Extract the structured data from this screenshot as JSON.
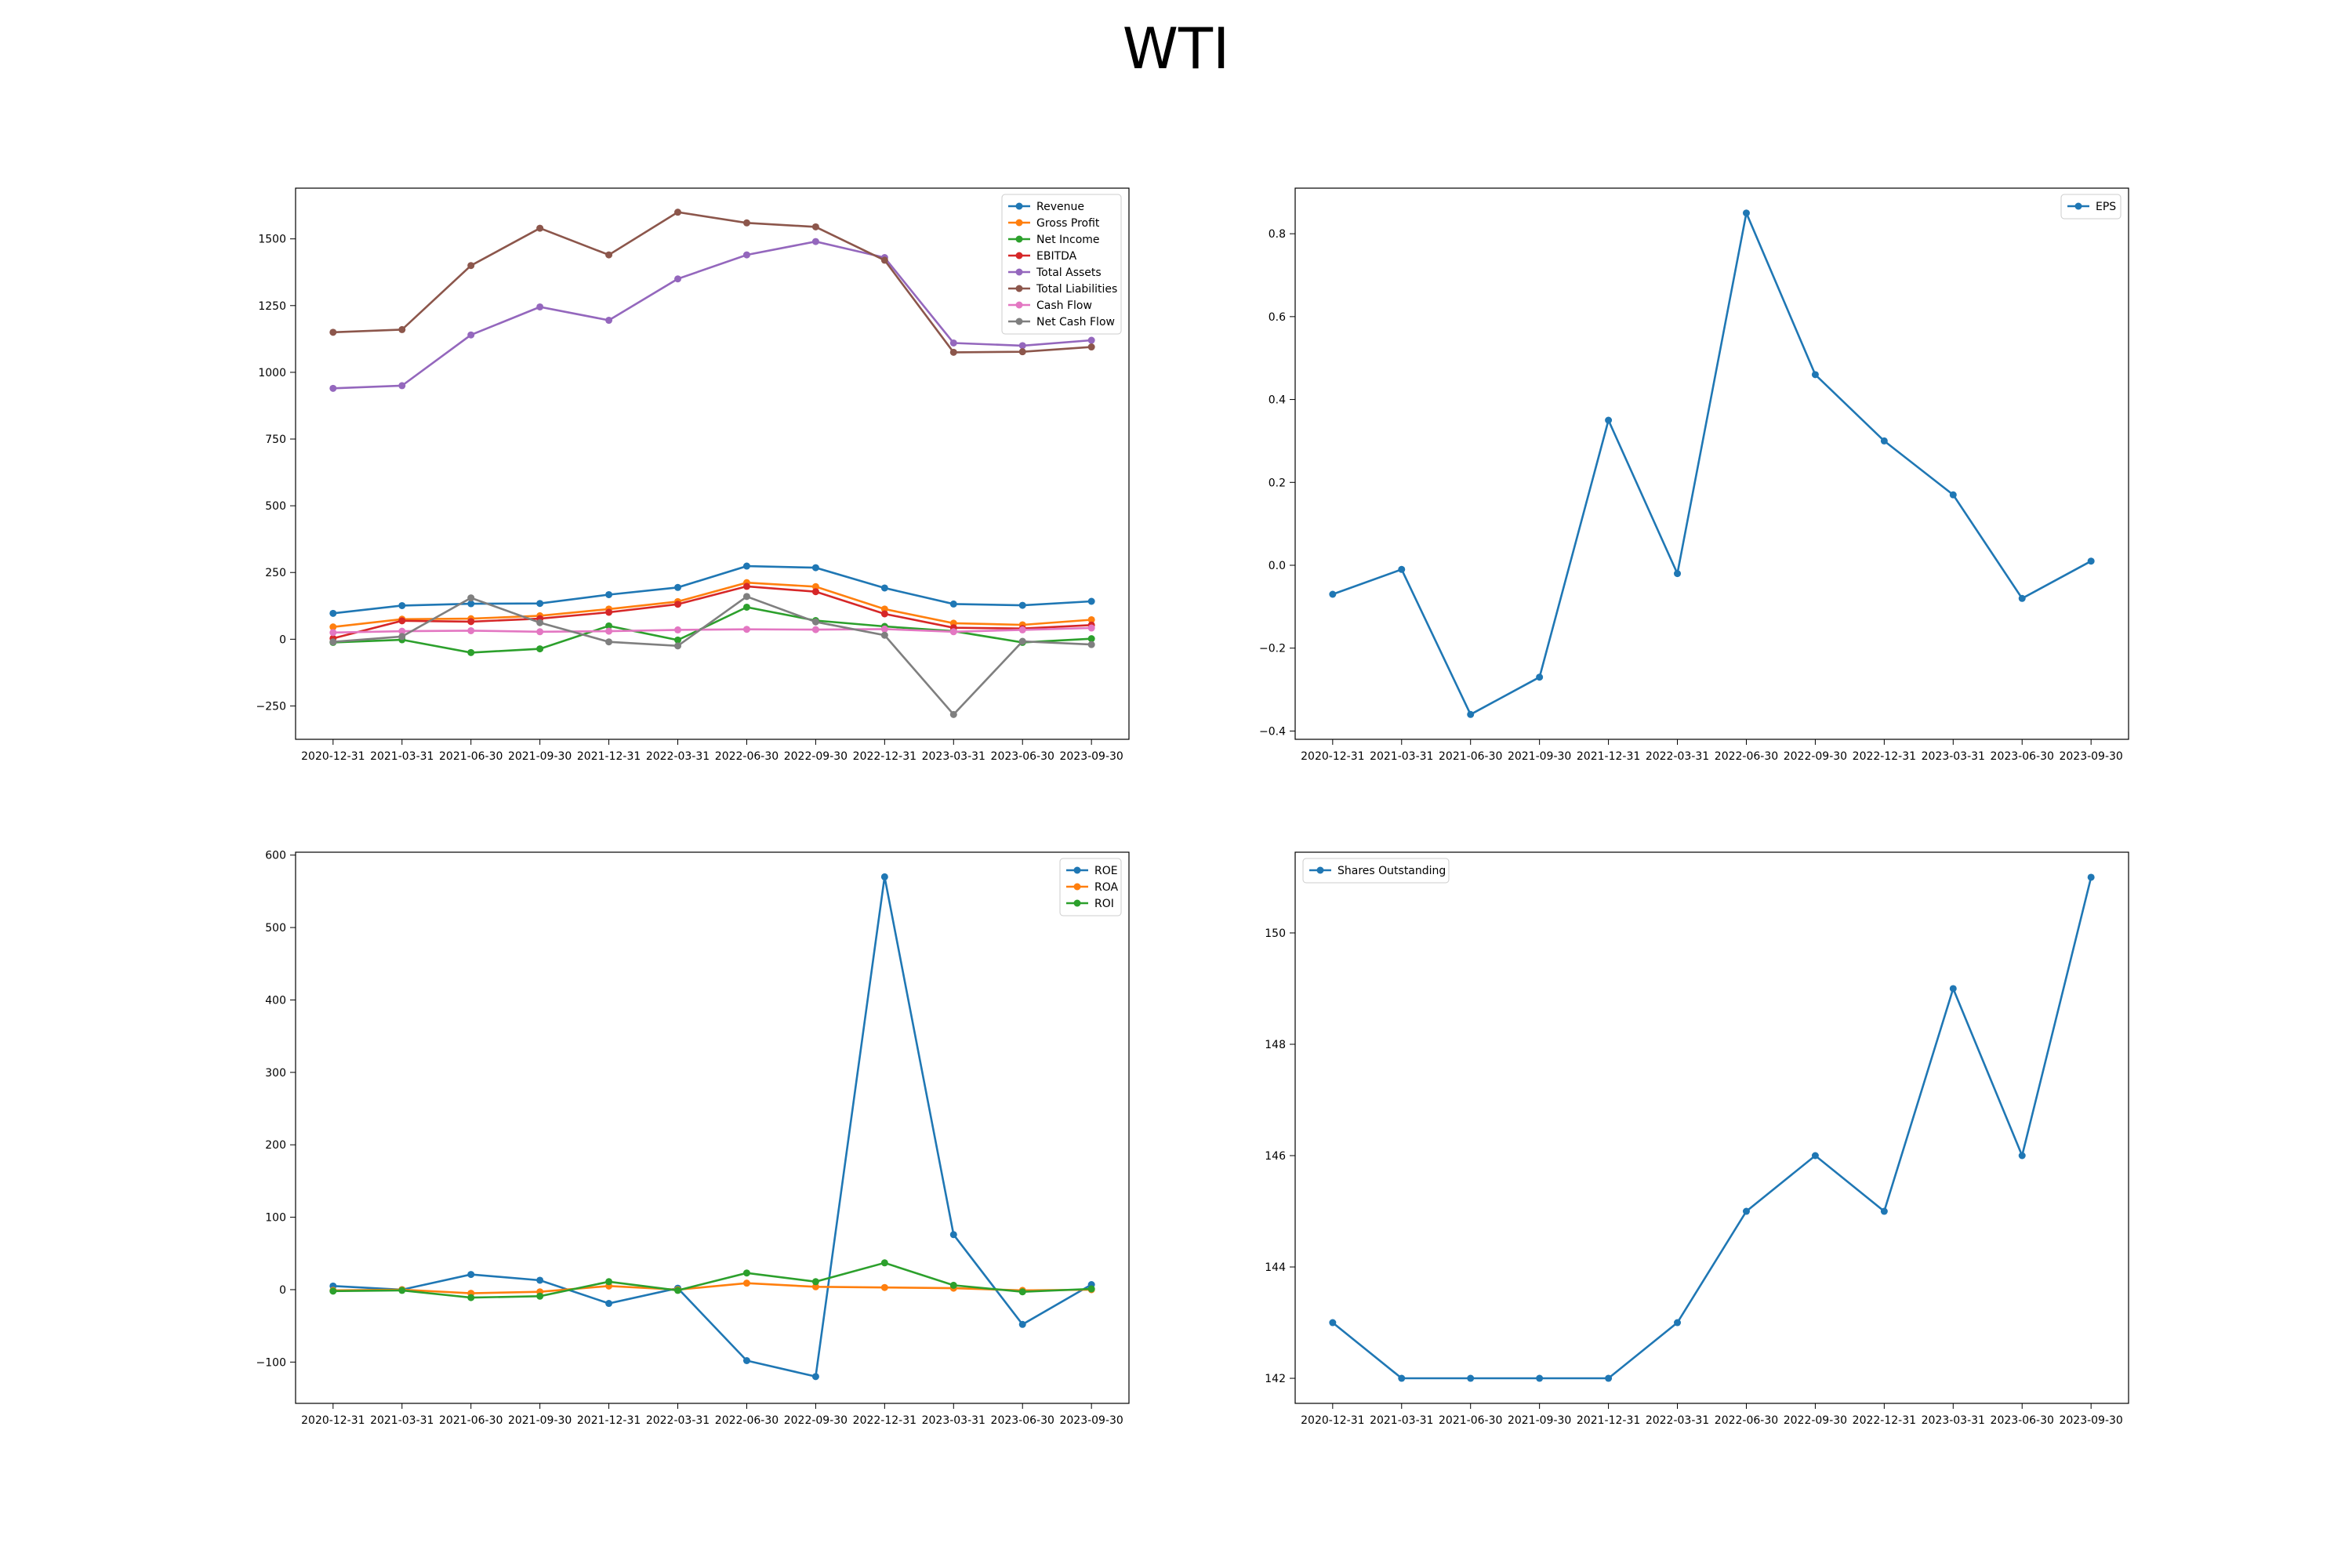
{
  "figure": {
    "title": "WTI"
  },
  "chart_data": [
    {
      "type": "line",
      "x": [
        "2020-12-31",
        "2021-03-31",
        "2021-06-30",
        "2021-09-30",
        "2021-12-31",
        "2022-03-31",
        "2022-06-30",
        "2022-09-30",
        "2022-12-31",
        "2023-03-31",
        "2023-06-30",
        "2023-09-30"
      ],
      "ylim": [
        -375,
        1690
      ],
      "yticks": [
        -250,
        0,
        250,
        500,
        750,
        1000,
        1250,
        1500
      ],
      "ytick_labels": [
        "−250",
        "0",
        "250",
        "500",
        "750",
        "1000",
        "1250",
        "1500"
      ],
      "legend_position": "top-right",
      "grid": false,
      "series": [
        {
          "name": "Revenue",
          "color": "#1f77b4",
          "values": [
            97,
            126,
            133,
            134,
            167,
            194,
            274,
            268,
            192,
            132,
            127,
            142
          ]
        },
        {
          "name": "Gross Profit",
          "color": "#ff7f0e",
          "values": [
            46,
            75,
            77,
            88,
            113,
            141,
            212,
            197,
            113,
            60,
            54,
            73
          ]
        },
        {
          "name": "Net Income",
          "color": "#2ca02c",
          "values": [
            -12,
            -2,
            -50,
            -36,
            50,
            -3,
            120,
            70,
            48,
            30,
            -12,
            2
          ]
        },
        {
          "name": "EBITDA",
          "color": "#d62728",
          "values": [
            3,
            69,
            66,
            77,
            101,
            131,
            198,
            178,
            95,
            43,
            40,
            53
          ]
        },
        {
          "name": "Total Assets",
          "color": "#9467bd",
          "values": [
            940,
            950,
            1140,
            1245,
            1195,
            1350,
            1440,
            1490,
            1430,
            1110,
            1100,
            1120
          ]
        },
        {
          "name": "Total Liabilities",
          "color": "#8c564b",
          "values": [
            1150,
            1160,
            1400,
            1540,
            1440,
            1600,
            1560,
            1545,
            1420,
            1075,
            1077,
            1095
          ]
        },
        {
          "name": "Cash Flow",
          "color": "#e377c2",
          "values": [
            25,
            30,
            32,
            28,
            30,
            35,
            37,
            36,
            38,
            28,
            35,
            42
          ]
        },
        {
          "name": "Net Cash Flow",
          "color": "#7f7f7f",
          "values": [
            -10,
            10,
            155,
            62,
            -10,
            -25,
            160,
            65,
            15,
            -282,
            -8,
            -20
          ]
        }
      ]
    },
    {
      "type": "line",
      "x": [
        "2020-12-31",
        "2021-03-31",
        "2021-06-30",
        "2021-09-30",
        "2021-12-31",
        "2022-03-31",
        "2022-06-30",
        "2022-09-30",
        "2022-12-31",
        "2023-03-31",
        "2023-06-30",
        "2023-09-30"
      ],
      "ylim": [
        -0.42,
        0.91
      ],
      "yticks": [
        -0.4,
        -0.2,
        0.0,
        0.2,
        0.4,
        0.6,
        0.8
      ],
      "ytick_labels": [
        "−0.4",
        "−0.2",
        "0.0",
        "0.2",
        "0.4",
        "0.6",
        "0.8"
      ],
      "legend_position": "top-right",
      "grid": false,
      "series": [
        {
          "name": "EPS",
          "color": "#1f77b4",
          "values": [
            -0.07,
            -0.01,
            -0.36,
            -0.27,
            0.35,
            -0.02,
            0.85,
            0.46,
            0.3,
            0.17,
            -0.08,
            0.01
          ]
        }
      ]
    },
    {
      "type": "line",
      "x": [
        "2020-12-31",
        "2021-03-31",
        "2021-06-30",
        "2021-09-30",
        "2021-12-31",
        "2022-03-31",
        "2022-06-30",
        "2022-09-30",
        "2022-12-31",
        "2023-03-31",
        "2023-06-30",
        "2023-09-30"
      ],
      "ylim": [
        -157,
        604
      ],
      "yticks": [
        -100,
        0,
        100,
        200,
        300,
        400,
        500,
        600
      ],
      "ytick_labels": [
        "−100",
        "0",
        "100",
        "200",
        "300",
        "400",
        "500",
        "600"
      ],
      "legend_position": "top-right",
      "grid": false,
      "series": [
        {
          "name": "ROE",
          "color": "#1f77b4",
          "values": [
            5,
            0,
            21,
            13,
            -19,
            2,
            -98,
            -120,
            570,
            76,
            -48,
            7
          ]
        },
        {
          "name": "ROA",
          "color": "#ff7f0e",
          "values": [
            -1,
            0,
            -5,
            -3,
            5,
            0,
            9,
            4,
            3,
            2,
            -1,
            0
          ]
        },
        {
          "name": "ROI",
          "color": "#2ca02c",
          "values": [
            -2,
            -1,
            -11,
            -9,
            11,
            -1,
            23,
            11,
            37,
            6,
            -3,
            1
          ]
        }
      ]
    },
    {
      "type": "line",
      "x": [
        "2020-12-31",
        "2021-03-31",
        "2021-06-30",
        "2021-09-30",
        "2021-12-31",
        "2022-03-31",
        "2022-06-30",
        "2022-09-30",
        "2022-12-31",
        "2023-03-31",
        "2023-06-30",
        "2023-09-30"
      ],
      "ylim": [
        141.55,
        151.45
      ],
      "yticks": [
        142,
        144,
        146,
        148,
        150
      ],
      "ytick_labels": [
        "142",
        "144",
        "146",
        "148",
        "150"
      ],
      "legend_position": "top-left",
      "grid": false,
      "series": [
        {
          "name": "Shares Outstanding",
          "color": "#1f77b4",
          "values": [
            143,
            142,
            142,
            142,
            142,
            143,
            145,
            146,
            145,
            149,
            146,
            151
          ]
        }
      ]
    }
  ]
}
